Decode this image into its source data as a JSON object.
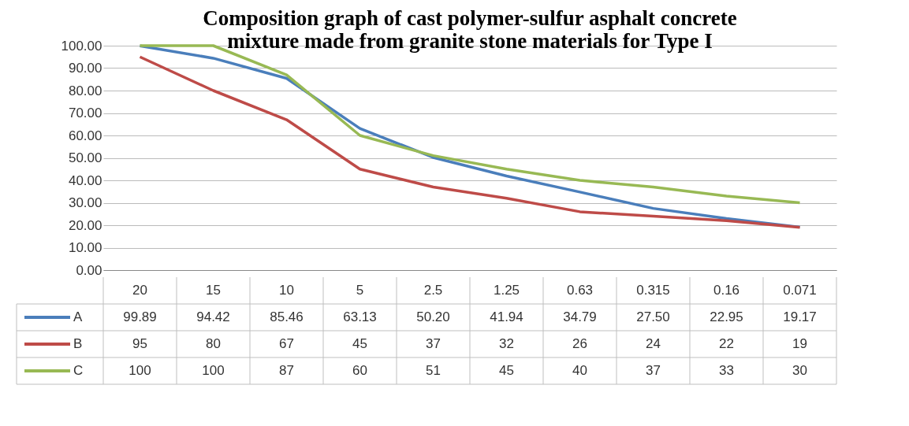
{
  "chart_data": {
    "type": "line",
    "title": [
      "Composition graph of cast polymer-sulfur asphalt concrete",
      "mixture made from granite stone materials for Type I"
    ],
    "categories": [
      "20",
      "15",
      "10",
      "5",
      "2.5",
      "1.25",
      "0.63",
      "0.315",
      "0.16",
      "0.071"
    ],
    "series": [
      {
        "name": "A",
        "color": "#4a7ebb",
        "values": [
          99.89,
          94.42,
          85.46,
          63.13,
          50.2,
          41.94,
          34.79,
          27.5,
          22.95,
          19.17
        ],
        "value_labels": [
          "99.89",
          "94.42",
          "85.46",
          "63.13",
          "50.20",
          "41.94",
          "34.79",
          "27.50",
          "22.95",
          "19.17"
        ]
      },
      {
        "name": "B",
        "color": "#be4b48",
        "values": [
          95,
          80,
          67,
          45,
          37,
          32,
          26,
          24,
          22,
          19
        ],
        "value_labels": [
          "95",
          "80",
          "67",
          "45",
          "37",
          "32",
          "26",
          "24",
          "22",
          "19"
        ]
      },
      {
        "name": "C",
        "color": "#98b954",
        "values": [
          100,
          100,
          87,
          60,
          51,
          45,
          40,
          37,
          33,
          30
        ],
        "value_labels": [
          "100",
          "100",
          "87",
          "60",
          "51",
          "45",
          "40",
          "37",
          "33",
          "30"
        ]
      }
    ],
    "ylim": [
      0,
      100
    ],
    "yticks": [
      {
        "value": 0,
        "label": "0.00"
      },
      {
        "value": 10,
        "label": "10.00"
      },
      {
        "value": 20,
        "label": "20.00"
      },
      {
        "value": 30,
        "label": "30.00"
      },
      {
        "value": 40,
        "label": "40.00"
      },
      {
        "value": 50,
        "label": "50.00"
      },
      {
        "value": 60,
        "label": "60.00"
      },
      {
        "value": 70,
        "label": "70.00"
      },
      {
        "value": 80,
        "label": "80.00"
      },
      {
        "value": 90,
        "label": "90.00"
      },
      {
        "value": 100,
        "label": "100.00"
      }
    ],
    "grid": "y",
    "legend": "bottom",
    "marker": "none",
    "line_style": "solid"
  }
}
